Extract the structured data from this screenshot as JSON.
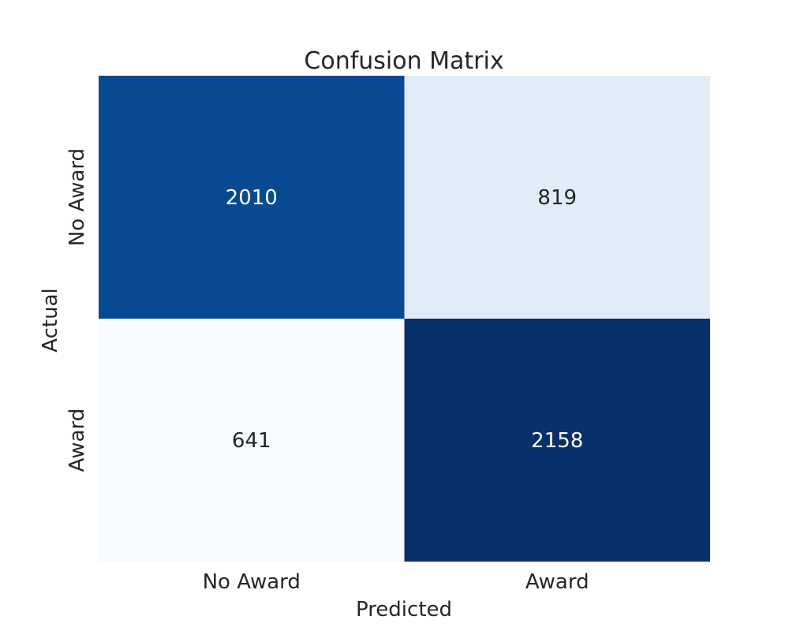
{
  "chart_data": {
    "type": "heatmap",
    "title": "Confusion Matrix",
    "xlabel": "Predicted",
    "ylabel": "Actual",
    "x_categories": [
      "No Award",
      "Award"
    ],
    "y_categories": [
      "No Award",
      "Award"
    ],
    "values": [
      [
        2010,
        819
      ],
      [
        641,
        2158
      ]
    ],
    "colormap": "Blues",
    "colorbar": false,
    "grid": false,
    "legend": "none"
  }
}
